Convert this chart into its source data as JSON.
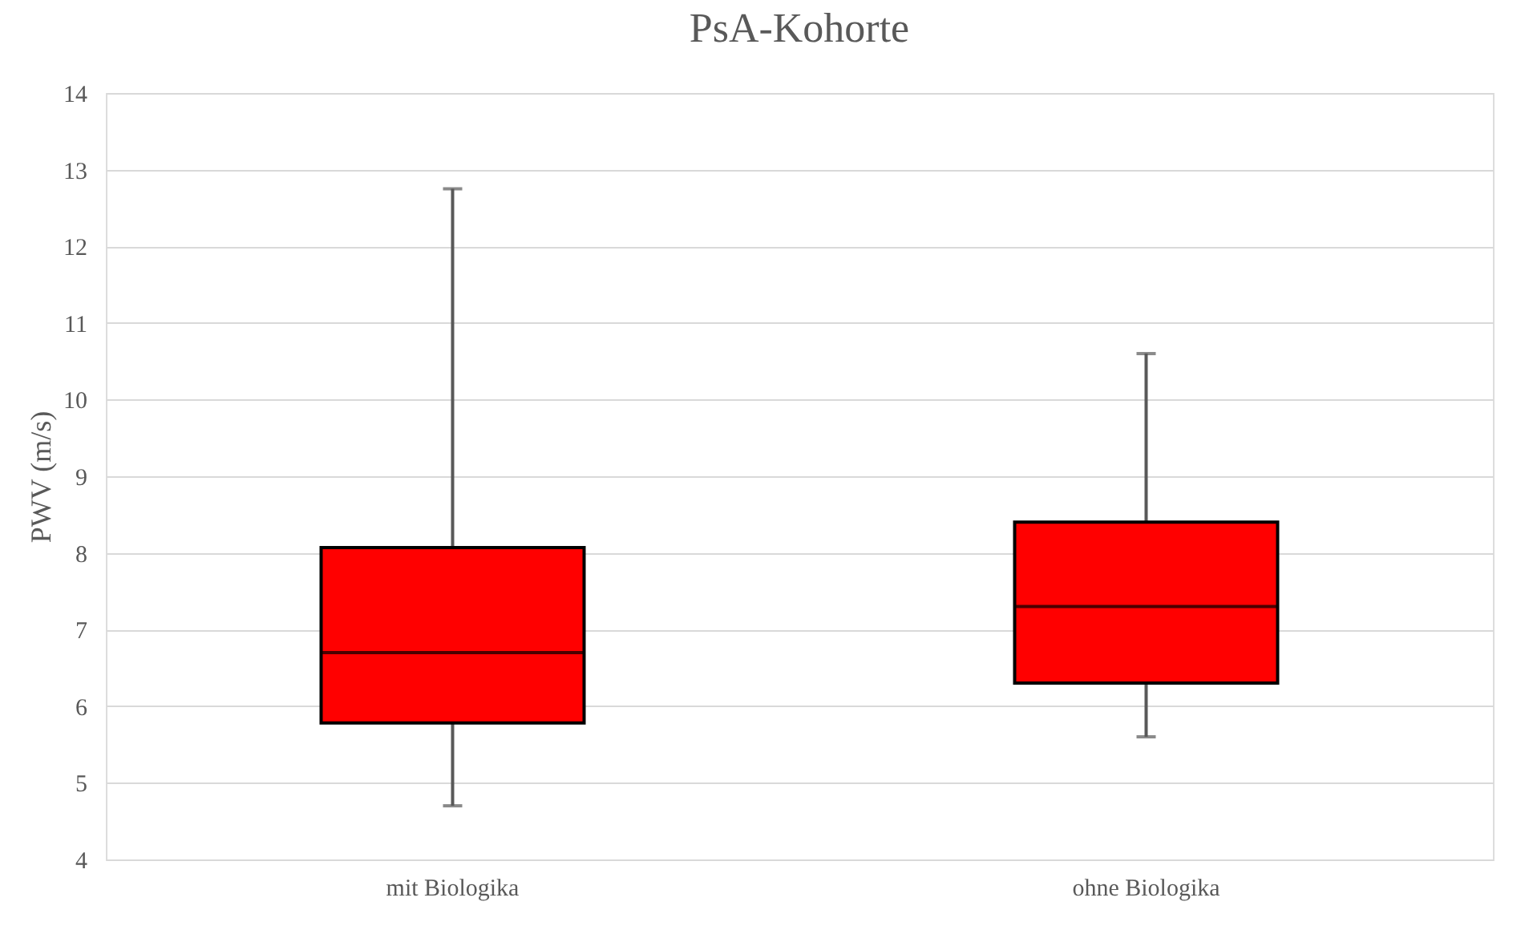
{
  "chart_data": {
    "type": "box",
    "title": "PsA-Kohorte",
    "ylabel": "PWV (m/s)",
    "categories": [
      "mit Biologika",
      "ohne Biologika"
    ],
    "boxes": [
      {
        "low": 4.7,
        "q1": 5.78,
        "median": 6.7,
        "q3": 8.07,
        "high": 12.75
      },
      {
        "low": 5.6,
        "q1": 6.3,
        "median": 7.3,
        "q3": 8.4,
        "high": 10.6
      }
    ],
    "color": "#ff0000",
    "ylim": [
      4,
      14
    ],
    "yticks": [
      4,
      5,
      6,
      7,
      8,
      9,
      10,
      11,
      12,
      13,
      14
    ],
    "grid": "y"
  }
}
